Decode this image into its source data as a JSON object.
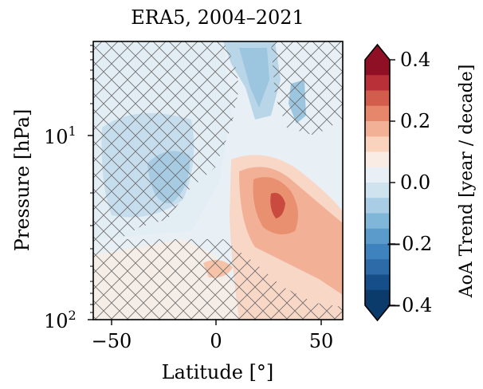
{
  "chart_data": {
    "type": "heatmap",
    "title": "ERA5, 2004–2021",
    "xlabel": "Latitude [°]",
    "ylabel": "Pressure [hPa]",
    "x_ticks": [
      -50,
      0,
      50
    ],
    "x_tick_labels": [
      "−50",
      "0",
      "50"
    ],
    "xlim": [
      -60,
      60
    ],
    "y_scale": "log",
    "ylim": [
      100,
      3
    ],
    "y_ticks": [
      10,
      100
    ],
    "y_tick_labels": [
      "10",
      "1",
      "10",
      "2"
    ],
    "hatching": "cross-hatched regions",
    "colorbar": {
      "label": "AoA Trend [year / decade]",
      "colormap": "RdBu_r",
      "vmin": -0.4,
      "vmax": 0.4,
      "levels": 16,
      "ticks": [
        0.4,
        0.2,
        0.0,
        -0.2,
        -0.4
      ],
      "tick_labels": [
        "0.4",
        "0.2",
        "0.0",
        "−0.2",
        "−0.4"
      ],
      "extend": "both"
    },
    "colors": [
      "#0b3b6b",
      "#164e8a",
      "#2c6aa8",
      "#3f83be",
      "#5a9bcb",
      "#80b6d8",
      "#a9cde4",
      "#cfe3ef",
      "#e8f0f6",
      "#f9ece5",
      "#fad3be",
      "#f2b196",
      "#e6876c",
      "#d35d4c",
      "#ba3039",
      "#8f1025"
    ],
    "regions": [
      {
        "name": "positive-maximum",
        "latitude": 30,
        "pressure_hPa": 22,
        "value": 0.28
      },
      {
        "name": "negative-lobe-upper",
        "latitude": -5,
        "pressure_hPa": 5,
        "value": -0.12
      },
      {
        "name": "negative-lobe-south",
        "latitude": -30,
        "pressure_hPa": 15,
        "value": -0.1
      },
      {
        "name": "negative-lobe-top",
        "latitude": 30,
        "pressure_hPa": 5,
        "value": -0.12
      }
    ]
  }
}
